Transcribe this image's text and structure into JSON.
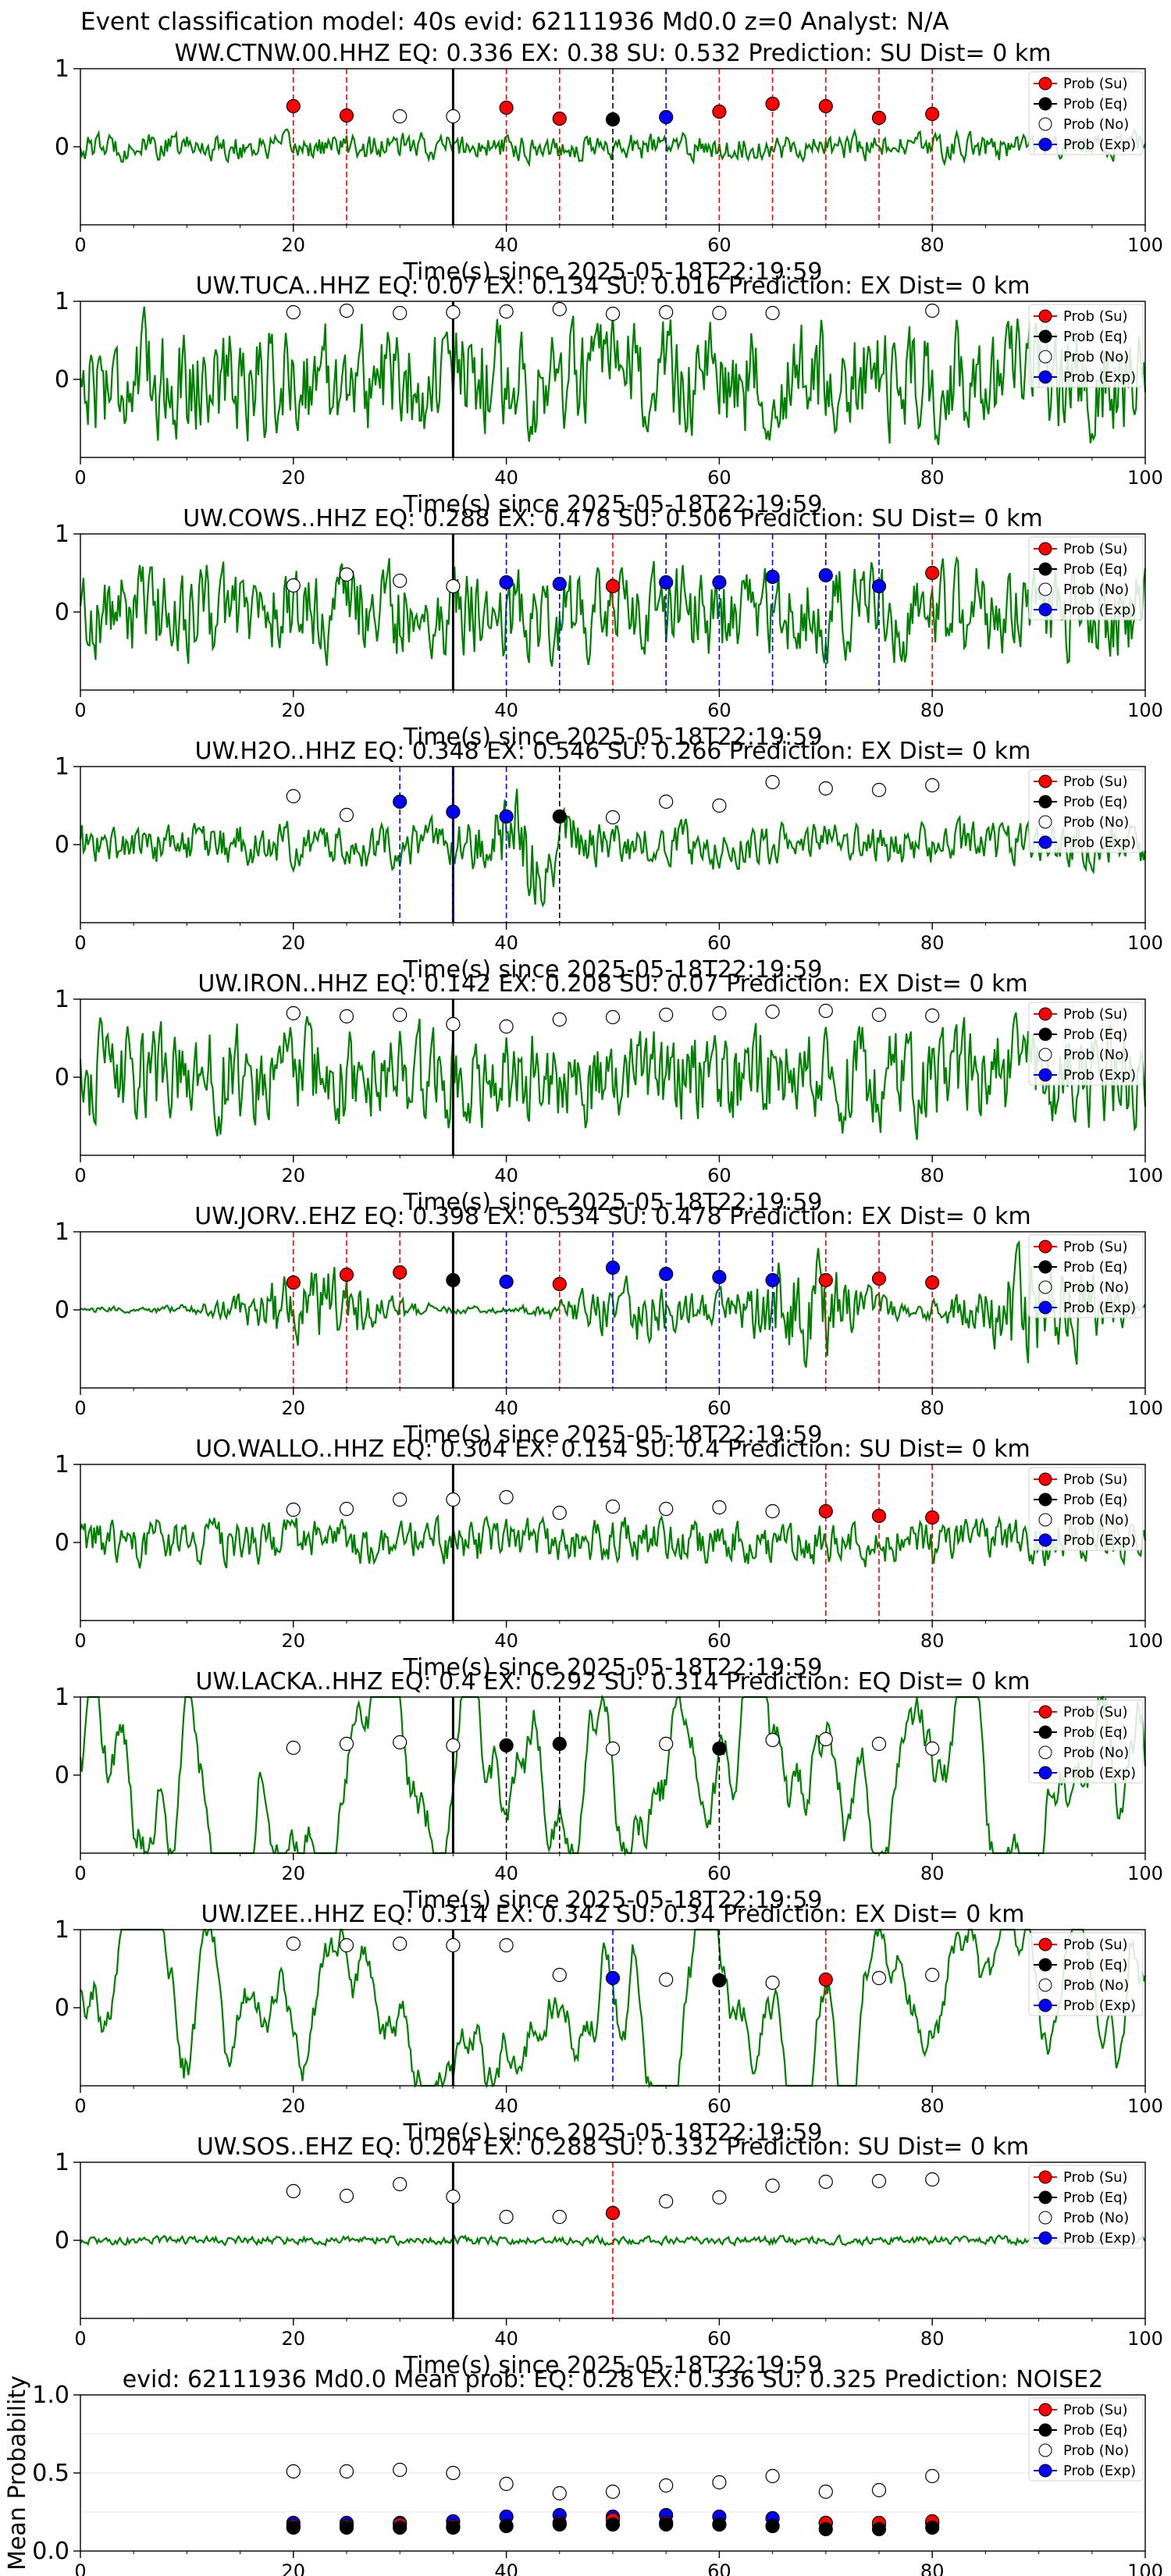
{
  "figure": {
    "suptitle": "Event classification model: 40s evid: 62111936 Md0.0 z=0 Analyst: N/A"
  },
  "legend_labels": [
    "Prob (Su)",
    "Prob (Eq)",
    "Prob (No)",
    "Prob (Exp)"
  ],
  "colors": {
    "su": "#ff0000",
    "eq": "#000000",
    "no": "#ffffff",
    "exp": "#0000ff",
    "trace": "#008000",
    "arrival_line": "#000000"
  },
  "chart_data": [
    {
      "type": "line",
      "station": "WW.CTNW.00.HHZ",
      "title": "WW.CTNW.00.HHZ   EQ: 0.336  EX: 0.38  SU: 0.532   Prediction: SU    Dist= 0 km",
      "xlabel": "Time(s) since 2025-05-18T22:19:59",
      "xlim": [
        0,
        100
      ],
      "ylim": [
        -1,
        1
      ],
      "xticks": [
        "0",
        "20",
        "40",
        "60",
        "80",
        "100"
      ],
      "yticks": [
        "0",
        "1"
      ],
      "arrival_time": 35,
      "trace": {
        "amplitude": 0.22,
        "style": "noise"
      },
      "windows": [
        {
          "t": 20,
          "cls": "su",
          "p": 0.52
        },
        {
          "t": 25,
          "cls": "su",
          "p": 0.4
        },
        {
          "t": 30,
          "cls": "no",
          "p": 0.39
        },
        {
          "t": 35,
          "cls": "no",
          "p": 0.39
        },
        {
          "t": 40,
          "cls": "su",
          "p": 0.5
        },
        {
          "t": 45,
          "cls": "su",
          "p": 0.36
        },
        {
          "t": 50,
          "cls": "eq",
          "p": 0.35
        },
        {
          "t": 55,
          "cls": "exp",
          "p": 0.38
        },
        {
          "t": 60,
          "cls": "su",
          "p": 0.45
        },
        {
          "t": 65,
          "cls": "su",
          "p": 0.55
        },
        {
          "t": 70,
          "cls": "su",
          "p": 0.52
        },
        {
          "t": 75,
          "cls": "su",
          "p": 0.37
        },
        {
          "t": 80,
          "cls": "su",
          "p": 0.42
        }
      ]
    },
    {
      "type": "line",
      "station": "UW.TUCA..HHZ",
      "title": "UW.TUCA..HHZ   EQ: 0.07  EX: 0.134  SU: 0.016   Prediction: EX    Dist= 0 km",
      "xlabel": "Time(s) since 2025-05-18T22:19:59",
      "xlim": [
        0,
        100
      ],
      "ylim": [
        -1,
        1
      ],
      "xticks": [
        "0",
        "20",
        "40",
        "60",
        "80",
        "100"
      ],
      "yticks": [
        "0",
        "1"
      ],
      "arrival_time": 35,
      "trace": {
        "amplitude": 0.9,
        "style": "noise"
      },
      "windows": [
        {
          "t": 20,
          "cls": "no",
          "p": 0.86
        },
        {
          "t": 25,
          "cls": "no",
          "p": 0.88
        },
        {
          "t": 30,
          "cls": "no",
          "p": 0.85
        },
        {
          "t": 35,
          "cls": "no",
          "p": 0.86
        },
        {
          "t": 40,
          "cls": "no",
          "p": 0.87
        },
        {
          "t": 45,
          "cls": "no",
          "p": 0.9
        },
        {
          "t": 50,
          "cls": "no",
          "p": 0.84
        },
        {
          "t": 55,
          "cls": "no",
          "p": 0.86
        },
        {
          "t": 60,
          "cls": "no",
          "p": 0.85
        },
        {
          "t": 65,
          "cls": "no",
          "p": 0.85
        },
        {
          "t": 80,
          "cls": "no",
          "p": 0.88
        }
      ]
    },
    {
      "type": "line",
      "station": "UW.COWS..HHZ",
      "title": "UW.COWS..HHZ   EQ: 0.288  EX: 0.478  SU: 0.506   Prediction: SU    Dist= 0 km",
      "xlabel": "Time(s) since 2025-05-18T22:19:59",
      "xlim": [
        0,
        100
      ],
      "ylim": [
        -1,
        1
      ],
      "xticks": [
        "0",
        "20",
        "40",
        "60",
        "80",
        "100"
      ],
      "yticks": [
        "0",
        "1"
      ],
      "arrival_time": 35,
      "trace": {
        "amplitude": 0.75,
        "style": "noise"
      },
      "windows": [
        {
          "t": 20,
          "cls": "no",
          "p": 0.34
        },
        {
          "t": 25,
          "cls": "no",
          "p": 0.48
        },
        {
          "t": 30,
          "cls": "no",
          "p": 0.4
        },
        {
          "t": 35,
          "cls": "no",
          "p": 0.33
        },
        {
          "t": 40,
          "cls": "exp",
          "p": 0.38
        },
        {
          "t": 45,
          "cls": "exp",
          "p": 0.36
        },
        {
          "t": 50,
          "cls": "su",
          "p": 0.33
        },
        {
          "t": 55,
          "cls": "exp",
          "p": 0.38
        },
        {
          "t": 60,
          "cls": "exp",
          "p": 0.38
        },
        {
          "t": 65,
          "cls": "exp",
          "p": 0.45
        },
        {
          "t": 70,
          "cls": "exp",
          "p": 0.47
        },
        {
          "t": 75,
          "cls": "exp",
          "p": 0.33
        },
        {
          "t": 80,
          "cls": "su",
          "p": 0.5
        }
      ]
    },
    {
      "type": "line",
      "station": "UW.H2O..HHZ",
      "title": "UW.H2O..HHZ   EQ: 0.348  EX: 0.546  SU: 0.266   Prediction: EX    Dist= 0 km",
      "xlabel": "Time(s) since 2025-05-18T22:19:59",
      "xlim": [
        0,
        100
      ],
      "ylim": [
        -1,
        1
      ],
      "xticks": [
        "0",
        "20",
        "40",
        "60",
        "80",
        "100"
      ],
      "yticks": [
        "0",
        "1"
      ],
      "arrival_time": 35,
      "trace": {
        "amplitude": 0.5,
        "style": "burst",
        "burst_at": 42
      },
      "windows": [
        {
          "t": 20,
          "cls": "no",
          "p": 0.62
        },
        {
          "t": 25,
          "cls": "no",
          "p": 0.38
        },
        {
          "t": 30,
          "cls": "exp",
          "p": 0.55
        },
        {
          "t": 35,
          "cls": "exp",
          "p": 0.42
        },
        {
          "t": 40,
          "cls": "exp",
          "p": 0.36
        },
        {
          "t": 45,
          "cls": "eq",
          "p": 0.36
        },
        {
          "t": 50,
          "cls": "no",
          "p": 0.35
        },
        {
          "t": 55,
          "cls": "no",
          "p": 0.55
        },
        {
          "t": 60,
          "cls": "no",
          "p": 0.5
        },
        {
          "t": 65,
          "cls": "no",
          "p": 0.8
        },
        {
          "t": 70,
          "cls": "no",
          "p": 0.72
        },
        {
          "t": 75,
          "cls": "no",
          "p": 0.7
        },
        {
          "t": 80,
          "cls": "no",
          "p": 0.76
        }
      ]
    },
    {
      "type": "line",
      "station": "UW.IRON..HHZ",
      "title": "UW.IRON..HHZ   EQ: 0.142  EX: 0.208  SU: 0.07   Prediction: EX    Dist= 0 km",
      "xlabel": "Time(s) since 2025-05-18T22:19:59",
      "xlim": [
        0,
        100
      ],
      "ylim": [
        -1,
        1
      ],
      "xticks": [
        "0",
        "20",
        "40",
        "60",
        "80",
        "100"
      ],
      "yticks": [
        "0",
        "1"
      ],
      "arrival_time": 35,
      "trace": {
        "amplitude": 0.8,
        "style": "noise"
      },
      "windows": [
        {
          "t": 20,
          "cls": "no",
          "p": 0.82
        },
        {
          "t": 25,
          "cls": "no",
          "p": 0.78
        },
        {
          "t": 30,
          "cls": "no",
          "p": 0.8
        },
        {
          "t": 35,
          "cls": "no",
          "p": 0.68
        },
        {
          "t": 40,
          "cls": "no",
          "p": 0.65
        },
        {
          "t": 45,
          "cls": "no",
          "p": 0.74
        },
        {
          "t": 50,
          "cls": "no",
          "p": 0.77
        },
        {
          "t": 55,
          "cls": "no",
          "p": 0.8
        },
        {
          "t": 60,
          "cls": "no",
          "p": 0.82
        },
        {
          "t": 65,
          "cls": "no",
          "p": 0.84
        },
        {
          "t": 70,
          "cls": "no",
          "p": 0.85
        },
        {
          "t": 75,
          "cls": "no",
          "p": 0.8
        },
        {
          "t": 80,
          "cls": "no",
          "p": 0.79
        }
      ]
    },
    {
      "type": "line",
      "station": "UW.JORV..EHZ",
      "title": "UW.JORV..EHZ   EQ: 0.398  EX: 0.534  SU: 0.478   Prediction: EX    Dist= 0 km",
      "xlabel": "Time(s) since 2025-05-18T22:19:59",
      "xlim": [
        0,
        100
      ],
      "ylim": [
        -1,
        1
      ],
      "xticks": [
        "0",
        "20",
        "40",
        "60",
        "80",
        "100"
      ],
      "yticks": [
        "0",
        "1"
      ],
      "arrival_time": 35,
      "trace": {
        "amplitude": 0.85,
        "style": "multi_burst"
      },
      "windows": [
        {
          "t": 20,
          "cls": "su",
          "p": 0.35
        },
        {
          "t": 25,
          "cls": "su",
          "p": 0.45
        },
        {
          "t": 30,
          "cls": "su",
          "p": 0.48
        },
        {
          "t": 35,
          "cls": "eq",
          "p": 0.38
        },
        {
          "t": 40,
          "cls": "exp",
          "p": 0.36
        },
        {
          "t": 45,
          "cls": "su",
          "p": 0.33
        },
        {
          "t": 50,
          "cls": "exp",
          "p": 0.54
        },
        {
          "t": 55,
          "cls": "exp",
          "p": 0.46
        },
        {
          "t": 60,
          "cls": "exp",
          "p": 0.42
        },
        {
          "t": 65,
          "cls": "exp",
          "p": 0.38
        },
        {
          "t": 70,
          "cls": "su",
          "p": 0.38
        },
        {
          "t": 75,
          "cls": "su",
          "p": 0.4
        },
        {
          "t": 80,
          "cls": "su",
          "p": 0.35
        }
      ]
    },
    {
      "type": "line",
      "station": "UO.WALLO..HHZ",
      "title": "UO.WALLO..HHZ   EQ: 0.304  EX: 0.154  SU: 0.4   Prediction: SU    Dist= 0 km",
      "xlabel": "Time(s) since 2025-05-18T22:19:59",
      "xlim": [
        0,
        100
      ],
      "ylim": [
        -1,
        1
      ],
      "xticks": [
        "0",
        "20",
        "40",
        "60",
        "80",
        "100"
      ],
      "yticks": [
        "0",
        "1"
      ],
      "arrival_time": 35,
      "trace": {
        "amplitude": 0.35,
        "style": "noise"
      },
      "windows": [
        {
          "t": 20,
          "cls": "no",
          "p": 0.42
        },
        {
          "t": 25,
          "cls": "no",
          "p": 0.43
        },
        {
          "t": 30,
          "cls": "no",
          "p": 0.55
        },
        {
          "t": 35,
          "cls": "no",
          "p": 0.55
        },
        {
          "t": 40,
          "cls": "no",
          "p": 0.58
        },
        {
          "t": 45,
          "cls": "no",
          "p": 0.38
        },
        {
          "t": 50,
          "cls": "no",
          "p": 0.46
        },
        {
          "t": 55,
          "cls": "no",
          "p": 0.43
        },
        {
          "t": 60,
          "cls": "no",
          "p": 0.45
        },
        {
          "t": 65,
          "cls": "no",
          "p": 0.4
        },
        {
          "t": 70,
          "cls": "su",
          "p": 0.4
        },
        {
          "t": 75,
          "cls": "su",
          "p": 0.34
        },
        {
          "t": 80,
          "cls": "su",
          "p": 0.32
        }
      ]
    },
    {
      "type": "line",
      "station": "UW.LACKA..HHZ",
      "title": "UW.LACKA..HHZ   EQ: 0.4  EX: 0.292  SU: 0.314   Prediction: EQ    Dist= 0 km",
      "xlabel": "Time(s) since 2025-05-18T22:19:59",
      "xlim": [
        0,
        100
      ],
      "ylim": [
        -1,
        1
      ],
      "xticks": [
        "0",
        "20",
        "40",
        "60",
        "80",
        "100"
      ],
      "yticks": [
        "0",
        "1"
      ],
      "arrival_time": 35,
      "trace": {
        "amplitude": 0.75,
        "style": "smooth"
      },
      "windows": [
        {
          "t": 20,
          "cls": "no",
          "p": 0.35
        },
        {
          "t": 25,
          "cls": "no",
          "p": 0.4
        },
        {
          "t": 30,
          "cls": "no",
          "p": 0.42
        },
        {
          "t": 35,
          "cls": "no",
          "p": 0.38
        },
        {
          "t": 40,
          "cls": "eq",
          "p": 0.38
        },
        {
          "t": 45,
          "cls": "eq",
          "p": 0.4
        },
        {
          "t": 50,
          "cls": "no",
          "p": 0.34
        },
        {
          "t": 55,
          "cls": "no",
          "p": 0.4
        },
        {
          "t": 60,
          "cls": "eq",
          "p": 0.34
        },
        {
          "t": 65,
          "cls": "no",
          "p": 0.45
        },
        {
          "t": 70,
          "cls": "no",
          "p": 0.46
        },
        {
          "t": 75,
          "cls": "no",
          "p": 0.4
        },
        {
          "t": 80,
          "cls": "no",
          "p": 0.34
        }
      ]
    },
    {
      "type": "line",
      "station": "UW.IZEE..HHZ",
      "title": "UW.IZEE..HHZ   EQ: 0.314  EX: 0.342  SU: 0.34   Prediction: EX    Dist= 0 km",
      "xlabel": "Time(s) since 2025-05-18T22:19:59",
      "xlim": [
        0,
        100
      ],
      "ylim": [
        -1,
        1
      ],
      "xticks": [
        "0",
        "20",
        "40",
        "60",
        "80",
        "100"
      ],
      "yticks": [
        "0",
        "1"
      ],
      "arrival_time": 35,
      "trace": {
        "amplitude": 0.65,
        "style": "smooth"
      },
      "windows": [
        {
          "t": 20,
          "cls": "no",
          "p": 0.82
        },
        {
          "t": 25,
          "cls": "no",
          "p": 0.8
        },
        {
          "t": 30,
          "cls": "no",
          "p": 0.82
        },
        {
          "t": 35,
          "cls": "no",
          "p": 0.8
        },
        {
          "t": 40,
          "cls": "no",
          "p": 0.8
        },
        {
          "t": 45,
          "cls": "no",
          "p": 0.42
        },
        {
          "t": 50,
          "cls": "exp",
          "p": 0.38
        },
        {
          "t": 55,
          "cls": "no",
          "p": 0.36
        },
        {
          "t": 60,
          "cls": "eq",
          "p": 0.35
        },
        {
          "t": 65,
          "cls": "no",
          "p": 0.32
        },
        {
          "t": 70,
          "cls": "su",
          "p": 0.36
        },
        {
          "t": 75,
          "cls": "no",
          "p": 0.38
        },
        {
          "t": 80,
          "cls": "no",
          "p": 0.42
        }
      ]
    },
    {
      "type": "line",
      "station": "UW.SOS..EHZ",
      "title": "UW.SOS..EHZ   EQ: 0.204  EX: 0.288  SU: 0.332   Prediction: SU    Dist= 0 km",
      "xlabel": "Time(s) since 2025-05-18T22:19:59",
      "xlim": [
        0,
        100
      ],
      "ylim": [
        -1,
        1
      ],
      "xticks": [
        "0",
        "20",
        "40",
        "60",
        "80",
        "100"
      ],
      "yticks": [
        "0",
        "1"
      ],
      "arrival_time": 35,
      "trace": {
        "amplitude": 0.07,
        "style": "noise"
      },
      "windows": [
        {
          "t": 20,
          "cls": "no",
          "p": 0.63
        },
        {
          "t": 25,
          "cls": "no",
          "p": 0.57
        },
        {
          "t": 30,
          "cls": "no",
          "p": 0.72
        },
        {
          "t": 35,
          "cls": "no",
          "p": 0.56
        },
        {
          "t": 40,
          "cls": "no",
          "p": 0.3
        },
        {
          "t": 45,
          "cls": "no",
          "p": 0.3
        },
        {
          "t": 50,
          "cls": "su",
          "p": 0.35
        },
        {
          "t": 55,
          "cls": "no",
          "p": 0.5
        },
        {
          "t": 60,
          "cls": "no",
          "p": 0.55
        },
        {
          "t": 65,
          "cls": "no",
          "p": 0.7
        },
        {
          "t": 70,
          "cls": "no",
          "p": 0.75
        },
        {
          "t": 75,
          "cls": "no",
          "p": 0.76
        },
        {
          "t": 80,
          "cls": "no",
          "p": 0.78
        }
      ]
    },
    {
      "type": "scatter",
      "title": "evid: 62111936   Md0.0   Mean prob:   EQ: 0.28  EX: 0.336  SU: 0.325   Prediction: NOISE2",
      "ylabel": "Mean Probability",
      "xlim": [
        0,
        100
      ],
      "ylim": [
        0,
        1
      ],
      "xticks": [
        "0",
        "20",
        "40",
        "60",
        "80",
        "100"
      ],
      "yticks": [
        "0.0",
        "0.5",
        "1.0"
      ],
      "x": [
        20,
        25,
        30,
        35,
        40,
        45,
        50,
        55,
        60,
        65,
        70,
        75,
        80
      ],
      "series": [
        {
          "key": "no",
          "values": [
            0.51,
            0.51,
            0.52,
            0.5,
            0.43,
            0.37,
            0.38,
            0.42,
            0.44,
            0.48,
            0.38,
            0.39,
            0.48
          ]
        },
        {
          "key": "exp",
          "values": [
            0.18,
            0.18,
            0.18,
            0.19,
            0.22,
            0.23,
            0.22,
            0.23,
            0.22,
            0.21,
            0.18,
            0.17,
            0.18
          ]
        },
        {
          "key": "su",
          "values": [
            0.16,
            0.16,
            0.17,
            0.16,
            0.16,
            0.18,
            0.2,
            0.18,
            0.17,
            0.16,
            0.18,
            0.18,
            0.19
          ]
        },
        {
          "key": "eq",
          "values": [
            0.15,
            0.15,
            0.15,
            0.15,
            0.16,
            0.17,
            0.17,
            0.17,
            0.17,
            0.16,
            0.14,
            0.14,
            0.15
          ]
        }
      ]
    }
  ]
}
